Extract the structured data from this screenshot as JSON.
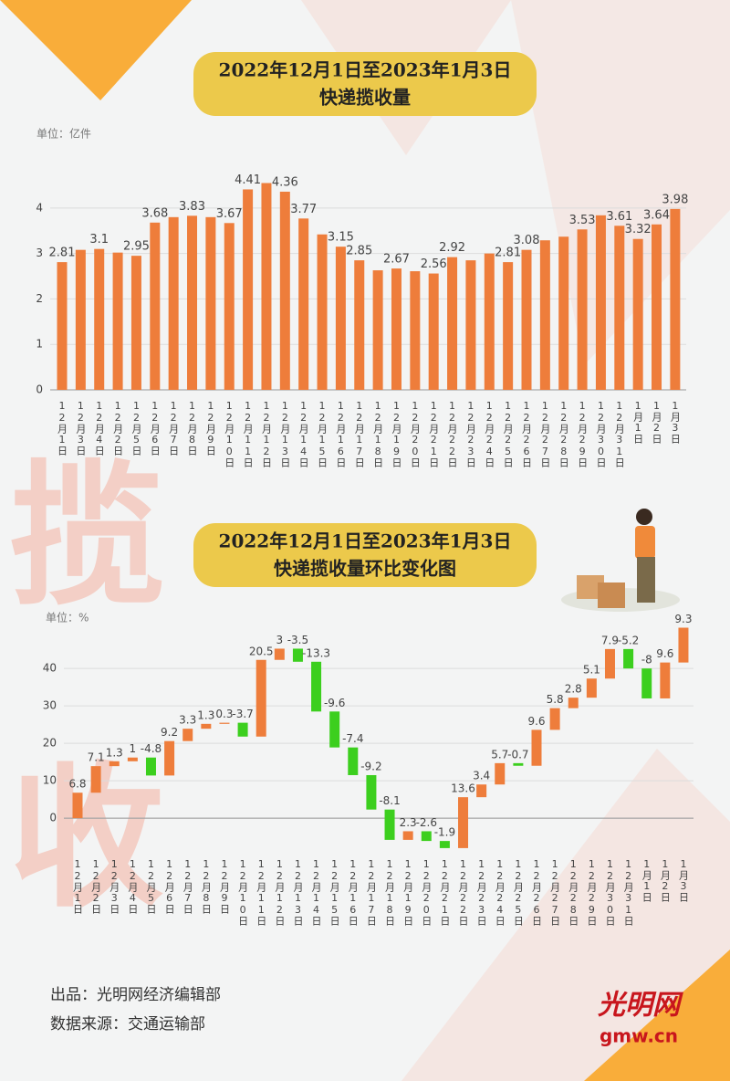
{
  "chart_data": [
    {
      "type": "bar",
      "title": [
        "2022年12月1日至2023年1月3日",
        "快递揽收量"
      ],
      "unit": "单位：亿件",
      "categories": [
        "12月1日",
        "12月3日",
        "12月4日",
        "12月2日",
        "12月5日",
        "12月6日",
        "12月7日",
        "12月8日",
        "12月9日",
        "12月10日",
        "12月11日",
        "12月12日",
        "12月13日",
        "12月14日",
        "12月15日",
        "12月16日",
        "12月17日",
        "12月18日",
        "12月19日",
        "12月20日",
        "12月21日",
        "12月22日",
        "12月23日",
        "12月24日",
        "12月25日",
        "12月26日",
        "12月27日",
        "12月28日",
        "12月29日",
        "12月30日",
        "12月31日",
        "1月1日",
        "1月2日",
        "1月3日"
      ],
      "values": [
        2.81,
        3.08,
        3.1,
        3.02,
        2.95,
        3.68,
        3.8,
        3.83,
        3.8,
        3.67,
        4.41,
        4.55,
        4.36,
        3.77,
        3.42,
        3.15,
        2.85,
        2.63,
        2.67,
        2.61,
        2.56,
        2.92,
        2.85,
        3.0,
        2.81,
        3.08,
        3.29,
        3.37,
        3.53,
        3.84,
        3.61,
        3.32,
        3.64,
        3.98
      ],
      "value_labels": [
        "2.81",
        null,
        "3.1",
        null,
        "2.95",
        "3.68",
        null,
        "3.83",
        null,
        "3.67",
        "4.41",
        null,
        "4.36",
        "3.77",
        null,
        "3.15",
        "2.85",
        null,
        "2.67",
        null,
        "2.56",
        "2.92",
        null,
        null,
        "2.81",
        "3.08",
        null,
        null,
        "3.53",
        null,
        "3.61",
        "3.32",
        "3.64",
        "3.98"
      ],
      "color": "#ee7d3b",
      "ylim": [
        0,
        4.6
      ],
      "yticks": [
        0,
        1,
        2,
        3,
        4
      ],
      "grid": true
    },
    {
      "type": "waterfall",
      "title": [
        "2022年12月1日至2023年1月3日",
        "快递揽收量环比变化图"
      ],
      "unit": "单位：%",
      "categories": [
        "12月1日",
        "12月2日",
        "12月3日",
        "12月4日",
        "12月5日",
        "12月6日",
        "12月7日",
        "12月8日",
        "12月9日",
        "12月10日",
        "12月11日",
        "12月12日",
        "12月13日",
        "12月14日",
        "12月15日",
        "12月16日",
        "12月17日",
        "12月18日",
        "12月19日",
        "12月20日",
        "12月21日",
        "12月22日",
        "12月23日",
        "12月24日",
        "12月25日",
        "12月26日",
        "12月27日",
        "12月28日",
        "12月29日",
        "12月30日",
        "12月31日",
        "1月1日",
        "1月2日",
        "1月3日"
      ],
      "values": [
        6.8,
        7.1,
        1.3,
        1,
        -4.8,
        9.2,
        3.3,
        1.3,
        0.3,
        -3.7,
        20.5,
        3,
        -3.5,
        -13.3,
        -9.6,
        -7.4,
        -9.2,
        -8.1,
        2.3,
        -2.6,
        -1.9,
        13.6,
        3.4,
        5.7,
        -0.7,
        9.6,
        5.8,
        2.8,
        5.1,
        7.9,
        -5.2,
        -8,
        9.6,
        9.3
      ],
      "colors": {
        "increase": "#ee7d3b",
        "decrease": "#3ccf1e"
      },
      "ylim": [
        -9,
        52
      ],
      "yticks": [
        0,
        10,
        20,
        30,
        40
      ],
      "grid": true
    }
  ],
  "watermark": [
    "揽",
    "收"
  ],
  "credits": [
    "出品：光明网经济编辑部",
    "数据来源：交通运输部"
  ],
  "logo": [
    "光明网",
    "gmw.cn"
  ]
}
